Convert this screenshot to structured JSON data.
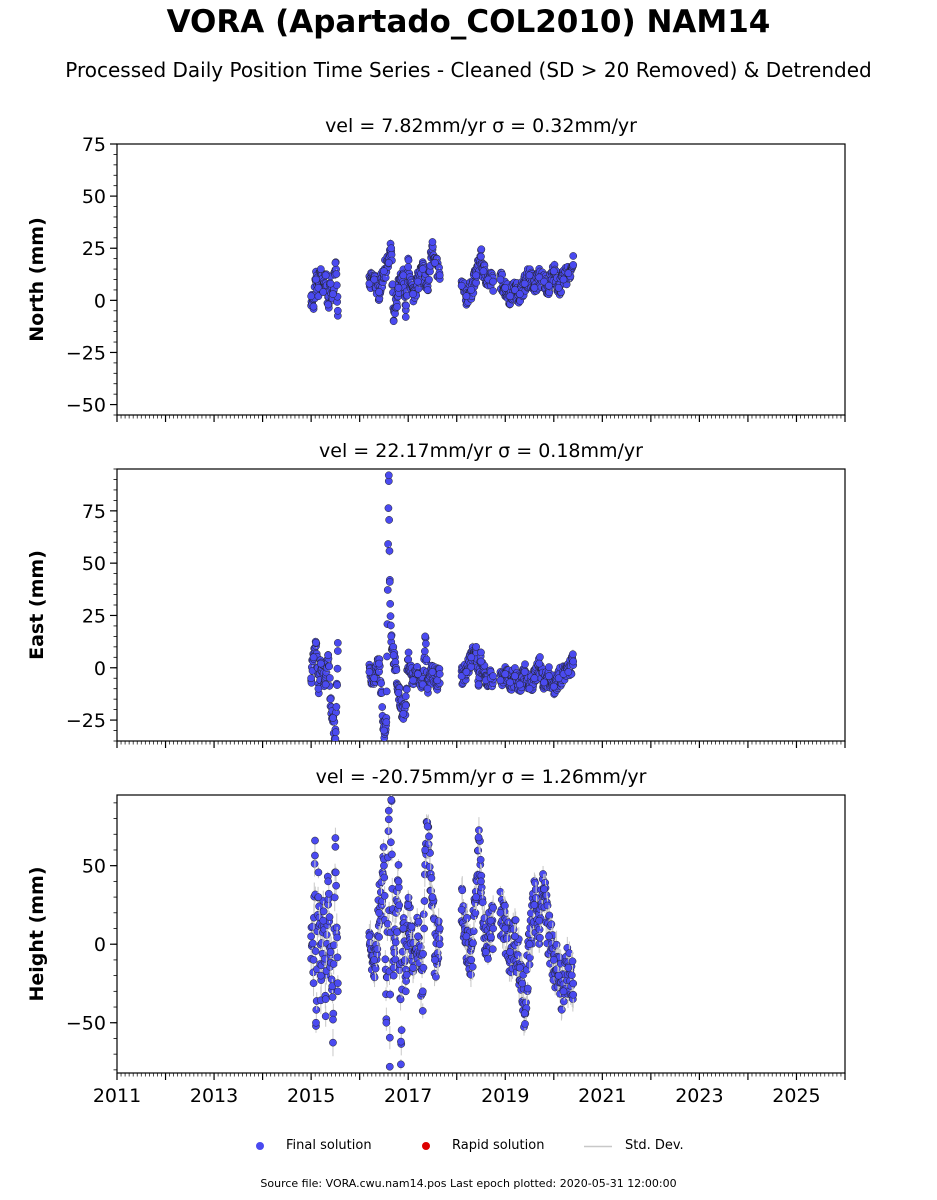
{
  "title": "VORA (Apartado_COL2010) NAM14",
  "subtitle": "Processed Daily Position Time Series - Cleaned (SD > 20 Removed) & Detrended",
  "legend": {
    "final": "Final solution",
    "rapid": "Rapid solution",
    "std": "Std. Dev."
  },
  "colors": {
    "final": "#4a4af0",
    "rapid": "#dd0000",
    "std": "#c8c8c8"
  },
  "source": "Source file: VORA.cwu.nam14.pos  Last epoch plotted: 2020-05-31 12:00:00",
  "chart_data": [
    {
      "type": "scatter",
      "title": "vel = 7.82mm/yr   σ = 0.32mm/yr",
      "ylabel": "North (mm)",
      "xlim": [
        2011,
        2026
      ],
      "ylim": [
        -55,
        75
      ],
      "yticks": [
        -50,
        -25,
        0,
        25,
        50,
        75
      ],
      "series": [
        {
          "name": "Final solution",
          "segments": [
            {
              "start": 2015.0,
              "end": 2015.55,
              "points": [
                [
                  2015.0,
                  2
                ],
                [
                  2015.05,
                  -3
                ],
                [
                  2015.1,
                  10
                ],
                [
                  2015.15,
                  6
                ],
                [
                  2015.2,
                  15
                ],
                [
                  2015.25,
                  4
                ],
                [
                  2015.3,
                  12
                ],
                [
                  2015.35,
                  -2
                ],
                [
                  2015.4,
                  8
                ],
                [
                  2015.45,
                  3
                ],
                [
                  2015.5,
                  18
                ],
                [
                  2015.55,
                  -5
                ]
              ]
            },
            {
              "start": 2016.2,
              "end": 2017.65,
              "points": [
                [
                  2016.2,
                  8
                ],
                [
                  2016.3,
                  10
                ],
                [
                  2016.4,
                  4
                ],
                [
                  2016.5,
                  14
                ],
                [
                  2016.6,
                  18
                ],
                [
                  2016.65,
                  25
                ],
                [
                  2016.7,
                  -10
                ],
                [
                  2016.8,
                  6
                ],
                [
                  2016.9,
                  12
                ],
                [
                  2016.95,
                  -8
                ],
                [
                  2017.0,
                  16
                ],
                [
                  2017.1,
                  3
                ],
                [
                  2017.2,
                  9
                ],
                [
                  2017.3,
                  15
                ],
                [
                  2017.4,
                  5
                ],
                [
                  2017.5,
                  28
                ],
                [
                  2017.55,
                  18
                ],
                [
                  2017.65,
                  12
                ]
              ]
            },
            {
              "start": 2018.1,
              "end": 2018.75,
              "points": [
                [
                  2018.1,
                  7
                ],
                [
                  2018.2,
                  2
                ],
                [
                  2018.3,
                  5
                ],
                [
                  2018.4,
                  12
                ],
                [
                  2018.5,
                  21
                ],
                [
                  2018.55,
                  14
                ],
                [
                  2018.65,
                  10
                ],
                [
                  2018.75,
                  9
                ]
              ]
            },
            {
              "start": 2018.9,
              "end": 2020.4,
              "points": [
                [
                  2018.9,
                  10
                ],
                [
                  2019.0,
                  6
                ],
                [
                  2019.1,
                  2
                ],
                [
                  2019.2,
                  5
                ],
                [
                  2019.3,
                  3
                ],
                [
                  2019.4,
                  8
                ],
                [
                  2019.5,
                  12
                ],
                [
                  2019.6,
                  6
                ],
                [
                  2019.7,
                  11
                ],
                [
                  2019.8,
                  9
                ],
                [
                  2019.9,
                  7
                ],
                [
                  2020.0,
                  14
                ],
                [
                  2020.1,
                  6
                ],
                [
                  2020.2,
                  10
                ],
                [
                  2020.3,
                  13
                ],
                [
                  2020.4,
                  17
                ]
              ]
            }
          ]
        }
      ]
    },
    {
      "type": "scatter",
      "title": "vel = 22.17mm/yr   σ = 0.18mm/yr",
      "ylabel": "East (mm)",
      "xlim": [
        2011,
        2026
      ],
      "ylim": [
        -35,
        95
      ],
      "yticks": [
        -25,
        0,
        25,
        50,
        75
      ],
      "series": [
        {
          "name": "Final solution",
          "segments": [
            {
              "start": 2015.0,
              "end": 2015.55,
              "points": [
                [
                  2015.0,
                  -5
                ],
                [
                  2015.05,
                  5
                ],
                [
                  2015.1,
                  12
                ],
                [
                  2015.15,
                  -10
                ],
                [
                  2015.2,
                  2
                ],
                [
                  2015.3,
                  -8
                ],
                [
                  2015.35,
                  6
                ],
                [
                  2015.4,
                  -15
                ],
                [
                  2015.45,
                  -24
                ],
                [
                  2015.5,
                  -34
                ],
                [
                  2015.55,
                  8
                ]
              ]
            },
            {
              "start": 2016.2,
              "end": 2017.65,
              "points": [
                [
                  2016.2,
                  -2
                ],
                [
                  2016.3,
                  -5
                ],
                [
                  2016.4,
                  2
                ],
                [
                  2016.5,
                  -30
                ],
                [
                  2016.55,
                  -26
                ],
                [
                  2016.6,
                  92
                ],
                [
                  2016.62,
                  41
                ],
                [
                  2016.65,
                  15
                ],
                [
                  2016.7,
                  6
                ],
                [
                  2016.8,
                  -12
                ],
                [
                  2016.9,
                  -22
                ],
                [
                  2016.95,
                  -18
                ],
                [
                  2017.0,
                  4
                ],
                [
                  2017.1,
                  -6
                ],
                [
                  2017.2,
                  -3
                ],
                [
                  2017.3,
                  -8
                ],
                [
                  2017.35,
                  15
                ],
                [
                  2017.4,
                  -10
                ],
                [
                  2017.5,
                  -2
                ],
                [
                  2017.6,
                  -6
                ],
                [
                  2017.65,
                  -3
                ]
              ]
            },
            {
              "start": 2018.1,
              "end": 2018.75,
              "points": [
                [
                  2018.1,
                  -4
                ],
                [
                  2018.2,
                  -2
                ],
                [
                  2018.3,
                  5
                ],
                [
                  2018.4,
                  10
                ],
                [
                  2018.45,
                  -8
                ],
                [
                  2018.5,
                  3
                ],
                [
                  2018.6,
                  -6
                ],
                [
                  2018.7,
                  -5
                ],
                [
                  2018.75,
                  -4
                ]
              ]
            },
            {
              "start": 2018.9,
              "end": 2020.4,
              "points": [
                [
                  2018.9,
                  -6
                ],
                [
                  2019.0,
                  -3
                ],
                [
                  2019.1,
                  -7
                ],
                [
                  2019.2,
                  -4
                ],
                [
                  2019.3,
                  -8
                ],
                [
                  2019.4,
                  -2
                ],
                [
                  2019.5,
                  -10
                ],
                [
                  2019.6,
                  -5
                ],
                [
                  2019.7,
                  2
                ],
                [
                  2019.8,
                  -7
                ],
                [
                  2019.9,
                  -4
                ],
                [
                  2020.0,
                  -9
                ],
                [
                  2020.1,
                  -5
                ],
                [
                  2020.2,
                  -3
                ],
                [
                  2020.3,
                  -2
                ],
                [
                  2020.4,
                  3
                ]
              ]
            }
          ]
        }
      ]
    },
    {
      "type": "scatter",
      "title": "vel = -20.75mm/yr   σ = 1.26mm/yr",
      "ylabel": "Height (mm)",
      "xlim": [
        2011,
        2026
      ],
      "ylim": [
        -82,
        95
      ],
      "yticks": [
        -50,
        0,
        50
      ],
      "xticks": [
        2011,
        2013,
        2015,
        2017,
        2019,
        2021,
        2023,
        2025
      ],
      "series": [
        {
          "name": "Final solution",
          "segments": [
            {
              "start": 2015.0,
              "end": 2015.55,
              "points": [
                [
                  2015.0,
                  5
                ],
                [
                  2015.05,
                  -10
                ],
                [
                  2015.08,
                  66
                ],
                [
                  2015.1,
                  -50
                ],
                [
                  2015.15,
                  30
                ],
                [
                  2015.2,
                  -20
                ],
                [
                  2015.25,
                  15
                ],
                [
                  2015.3,
                  -35
                ],
                [
                  2015.35,
                  40
                ],
                [
                  2015.4,
                  -5
                ],
                [
                  2015.45,
                  -48
                ],
                [
                  2015.5,
                  62
                ],
                [
                  2015.55,
                  -30
                ]
              ]
            },
            {
              "start": 2016.2,
              "end": 2017.65,
              "points": [
                [
                  2016.2,
                  5
                ],
                [
                  2016.3,
                  -10
                ],
                [
                  2016.4,
                  20
                ],
                [
                  2016.5,
                  50
                ],
                [
                  2016.55,
                  -50
                ],
                [
                  2016.6,
                  85
                ],
                [
                  2016.62,
                  -78
                ],
                [
                  2016.65,
                  92
                ],
                [
                  2016.7,
                  -20
                ],
                [
                  2016.8,
                  40
                ],
                [
                  2016.85,
                  -62
                ],
                [
                  2016.9,
                  10
                ],
                [
                  2016.95,
                  -30
                ],
                [
                  2017.0,
                  25
                ],
                [
                  2017.1,
                  -15
                ],
                [
                  2017.2,
                  5
                ],
                [
                  2017.3,
                  -30
                ],
                [
                  2017.35,
                  60
                ],
                [
                  2017.4,
                  75
                ],
                [
                  2017.5,
                  30
                ],
                [
                  2017.55,
                  -10
                ],
                [
                  2017.65,
                  10
                ]
              ]
            },
            {
              "start": 2018.1,
              "end": 2018.75,
              "points": [
                [
                  2018.1,
                  22
                ],
                [
                  2018.2,
                  5
                ],
                [
                  2018.3,
                  -10
                ],
                [
                  2018.4,
                  30
                ],
                [
                  2018.45,
                  68
                ],
                [
                  2018.5,
                  40
                ],
                [
                  2018.6,
                  -5
                ],
                [
                  2018.7,
                  15
                ],
                [
                  2018.75,
                  10
                ]
              ]
            },
            {
              "start": 2018.9,
              "end": 2020.4,
              "points": [
                [
                  2018.9,
                  20
                ],
                [
                  2019.0,
                  10
                ],
                [
                  2019.1,
                  -5
                ],
                [
                  2019.2,
                  5
                ],
                [
                  2019.3,
                  -15
                ],
                [
                  2019.35,
                  -25
                ],
                [
                  2019.4,
                  -44
                ],
                [
                  2019.5,
                  0
                ],
                [
                  2019.6,
                  25
                ],
                [
                  2019.7,
                  15
                ],
                [
                  2019.8,
                  35
                ],
                [
                  2019.9,
                  5
                ],
                [
                  2020.0,
                  -10
                ],
                [
                  2020.1,
                  -20
                ],
                [
                  2020.2,
                  -30
                ],
                [
                  2020.3,
                  -15
                ],
                [
                  2020.4,
                  -25
                ]
              ]
            }
          ]
        }
      ]
    }
  ]
}
